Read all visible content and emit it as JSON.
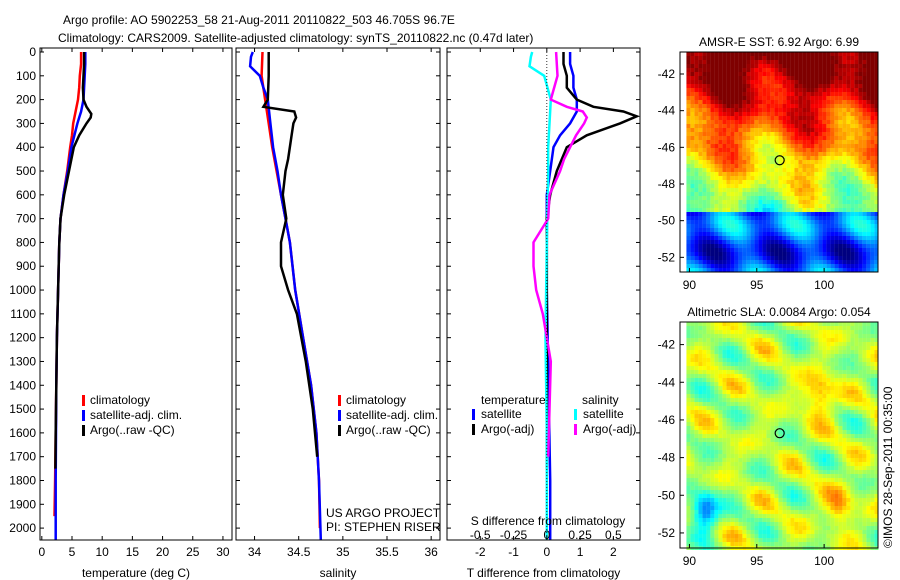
{
  "title_line1": "Argo profile: AO 5902253_58 21-Aug-2011 20110822_503 46.705S 96.7E",
  "title_line2": "Climatology: CARS2009. Satellite-adjusted climatology: synTS_20110822.nc (0.47d later)",
  "credit": "©IMOS 28-Sep-2011 00:35:00",
  "project_line1": "US ARGO PROJECT",
  "project_line2": "PI: STEPHEN RISER",
  "colors": {
    "climatology": "#ff0000",
    "satellite": "#0000ff",
    "argo": "#000000",
    "sal_satellite": "#00ffff",
    "sal_argo": "#ff00ff"
  },
  "chart_data": [
    {
      "type": "line",
      "name": "temperature-profile",
      "xlabel": "temperature (deg C)",
      "ylabel": "",
      "xlim": [
        -0.3,
        31.5
      ],
      "ylim": [
        2050,
        0
      ],
      "xticks": [
        0,
        5,
        10,
        15,
        20,
        25,
        30
      ],
      "yticks": [
        0,
        100,
        200,
        300,
        400,
        500,
        600,
        700,
        800,
        900,
        1000,
        1100,
        1200,
        1300,
        1400,
        1500,
        1600,
        1700,
        1800,
        1900,
        2000
      ],
      "legend": [
        "climatology",
        "satellite-adj. clim.",
        "Argo(..raw -QC)"
      ],
      "legend_position": "lower-center",
      "series": [
        {
          "name": "climatology",
          "color": "#ff0000",
          "depth": [
            0,
            50,
            100,
            150,
            200,
            250,
            275,
            300,
            350,
            400,
            500,
            600,
            700,
            800,
            900,
            1000,
            1200,
            1400,
            1600,
            1800,
            1950
          ],
          "values": [
            6.5,
            6.5,
            6.3,
            6.2,
            6.0,
            5.6,
            5.4,
            5.2,
            5.0,
            4.7,
            4.2,
            3.6,
            3.1,
            2.9,
            2.8,
            2.7,
            2.5,
            2.4,
            2.3,
            2.2,
            2.1
          ]
        },
        {
          "name": "satellite-adj. clim.",
          "color": "#0000ff",
          "depth": [
            0,
            50,
            100,
            150,
            200,
            250,
            275,
            300,
            350,
            400,
            500,
            600,
            700,
            800,
            900,
            1000,
            1200,
            1400,
            1600,
            1800,
            2050
          ],
          "values": [
            7.2,
            7.2,
            7.1,
            7.0,
            6.9,
            6.5,
            6.2,
            5.9,
            5.4,
            4.9,
            4.3,
            3.6,
            3.1,
            2.9,
            2.8,
            2.7,
            2.5,
            2.4,
            2.35,
            2.3,
            2.3
          ]
        },
        {
          "name": "Argo(..raw -QC)",
          "color": "#000000",
          "depth": [
            0,
            50,
            100,
            150,
            200,
            230,
            260,
            275,
            300,
            350,
            400,
            500,
            600,
            700,
            800,
            900,
            1000,
            1200,
            1400,
            1600,
            1750
          ],
          "values": [
            7.0,
            7.0,
            6.9,
            6.8,
            6.9,
            7.4,
            8.2,
            8.1,
            7.4,
            6.2,
            5.3,
            4.5,
            3.7,
            3.1,
            2.9,
            2.8,
            2.7,
            2.5,
            2.4,
            2.3,
            2.25
          ]
        }
      ]
    },
    {
      "type": "line",
      "name": "salinity-profile",
      "xlabel": "salinity",
      "ylabel": "",
      "xlim": [
        33.79,
        36.1
      ],
      "ylim": [
        2050,
        0
      ],
      "xticks": [
        34,
        34.5,
        35,
        35.5,
        36
      ],
      "legend": [
        "climatology",
        "satellite-adj. clim.",
        "Argo(..raw -QC)"
      ],
      "legend_position": "lower-right",
      "series": [
        {
          "name": "climatology",
          "color": "#ff0000",
          "depth": [
            0,
            100,
            200,
            300,
            400,
            500,
            600,
            700,
            800,
            1000,
            1200,
            1400,
            1600,
            1800,
            2000
          ],
          "values": [
            34.09,
            34.08,
            34.12,
            34.16,
            34.2,
            34.25,
            34.3,
            34.35,
            34.4,
            34.46,
            34.55,
            34.64,
            34.7,
            34.73,
            34.74
          ]
        },
        {
          "name": "satellite-adj. clim.",
          "color": "#0000ff",
          "depth": [
            0,
            20,
            60,
            100,
            150,
            200,
            300,
            400,
            500,
            600,
            700,
            800,
            1000,
            1200,
            1400,
            1600,
            1800,
            2050
          ],
          "values": [
            33.98,
            33.96,
            33.95,
            34.06,
            34.1,
            34.15,
            34.18,
            34.21,
            34.26,
            34.3,
            34.35,
            34.4,
            34.46,
            34.55,
            34.64,
            34.7,
            34.73,
            34.75
          ]
        },
        {
          "name": "Argo(..raw -QC)",
          "color": "#000000",
          "depth": [
            0,
            100,
            200,
            230,
            250,
            275,
            300,
            350,
            450,
            500,
            600,
            700,
            800,
            900,
            1000,
            1100,
            1300,
            1500,
            1700
          ],
          "values": [
            34.16,
            34.16,
            34.15,
            34.1,
            34.45,
            34.47,
            34.44,
            34.42,
            34.38,
            34.35,
            34.32,
            34.36,
            34.3,
            34.3,
            34.38,
            34.48,
            34.58,
            34.66,
            34.71
          ]
        }
      ]
    },
    {
      "type": "line",
      "name": "difference-profile",
      "xlabel": "T difference from climatology",
      "x2label": "S difference from climatology",
      "xlim": [
        -3,
        2.8
      ],
      "ylim": [
        2050,
        0
      ],
      "xticks": [
        -2,
        -1,
        0,
        1,
        2
      ],
      "x2ticks": [
        "-0.5",
        "-0.25",
        "0",
        "0.25",
        "0.5"
      ],
      "legend_titles": [
        "temperature",
        "salinity"
      ],
      "legend": [
        "satellite",
        "Argo(-adj)",
        "satellite",
        "Argo(-adj)"
      ],
      "legend_position": "lower-center",
      "series": [
        {
          "name": "temperature satellite",
          "color": "#0000ff",
          "depth": [
            0,
            50,
            100,
            150,
            200,
            250,
            300,
            350,
            400,
            500,
            600,
            700,
            800,
            1000,
            1400,
            1800,
            2050
          ],
          "values": [
            0.7,
            0.7,
            0.8,
            0.8,
            0.9,
            0.9,
            0.7,
            0.4,
            0.2,
            0.1,
            0.0,
            0.0,
            0.0,
            0.0,
            0.05,
            0.1,
            0.1
          ]
        },
        {
          "name": "temperature Argo(-adj)",
          "color": "#000000",
          "depth": [
            0,
            50,
            100,
            150,
            200,
            230,
            250,
            270,
            300,
            350,
            400,
            500,
            600,
            700,
            800,
            1000,
            1400,
            1750
          ],
          "values": [
            0.5,
            0.5,
            0.6,
            0.6,
            0.9,
            1.4,
            2.3,
            2.7,
            2.2,
            1.2,
            0.6,
            0.3,
            0.1,
            0.0,
            0.0,
            0.0,
            0.0,
            0.0
          ]
        },
        {
          "name": "salinity satellite",
          "color": "#00ffff",
          "depth": [
            0,
            20,
            60,
            100,
            200,
            300,
            400,
            500,
            800,
            1200,
            1600,
            2050
          ],
          "values": [
            -0.11,
            -0.12,
            -0.13,
            -0.02,
            0.03,
            0.02,
            0.01,
            0.01,
            0.0,
            -0.01,
            0.0,
            0.0
          ]
        },
        {
          "name": "salinity Argo(-adj)",
          "color": "#ff00ff",
          "depth": [
            0,
            100,
            200,
            230,
            250,
            275,
            300,
            350,
            450,
            500,
            600,
            700,
            800,
            900,
            1000,
            1100,
            1300,
            1500,
            1700
          ],
          "values": [
            0.07,
            0.08,
            0.03,
            0.15,
            0.27,
            0.3,
            0.28,
            0.22,
            0.13,
            0.1,
            0.02,
            0.01,
            -0.1,
            -0.1,
            -0.08,
            -0.03,
            0.03,
            0.02,
            0.01
          ]
        }
      ]
    },
    {
      "type": "heatmap",
      "name": "sst-map",
      "title": "AMSR-E SST: 6.92 Argo: 6.99",
      "xlim": [
        89.3,
        104
      ],
      "ylim": [
        -52.8,
        -40.8
      ],
      "xticks": [
        90,
        95,
        100
      ],
      "yticks": [
        -42,
        -44,
        -46,
        -48,
        -50,
        -52
      ],
      "colormap": "jet",
      "marker": {
        "lon": 96.7,
        "lat": -46.705
      }
    },
    {
      "type": "heatmap",
      "name": "sla-map",
      "title": "Altimetric SLA: 0.0084 Argo: 0.054",
      "xlim": [
        89.3,
        104
      ],
      "ylim": [
        -52.8,
        -40.8
      ],
      "xticks": [
        90,
        95,
        100
      ],
      "yticks": [
        -42,
        -44,
        -46,
        -48,
        -50,
        -52
      ],
      "colormap": "jet",
      "marker": {
        "lon": 96.7,
        "lat": -46.705
      }
    }
  ]
}
